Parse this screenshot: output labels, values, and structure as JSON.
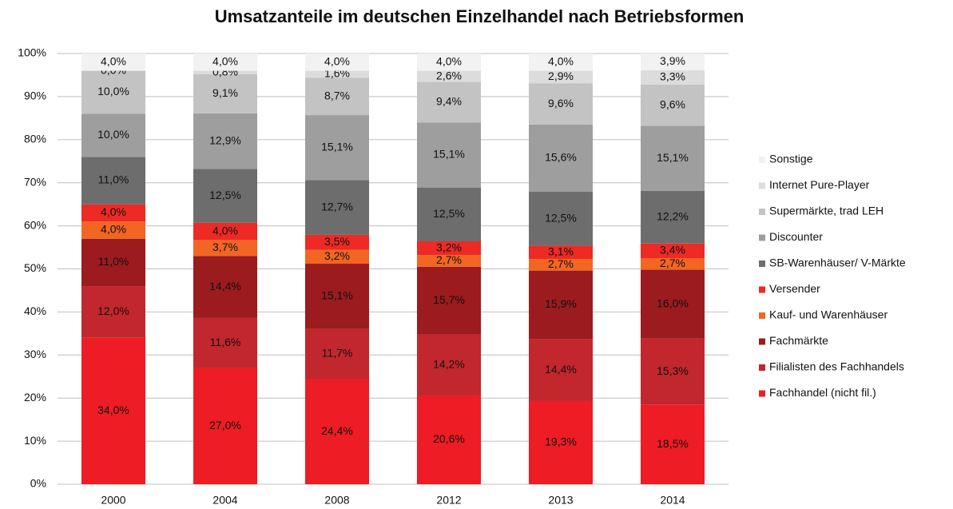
{
  "chart_data": {
    "type": "stacked_bar",
    "title": "Umsatzanteile im deutschen Einzelhandel nach Betriebsformen",
    "categories": [
      "2000",
      "2004",
      "2008",
      "2012",
      "2013",
      "2014"
    ],
    "series": [
      {
        "name": "Fachhandel (nicht fil.)",
        "color": "#ee1c24",
        "values": [
          34.0,
          27.0,
          24.4,
          20.6,
          19.3,
          18.5
        ],
        "value_labels": [
          "34,0%",
          "27,0%",
          "24,4%",
          "20,6%",
          "19,3%",
          "18,5%"
        ]
      },
      {
        "name": "Filialisten des Fachhandels",
        "color": "#c1272d",
        "values": [
          12.0,
          11.6,
          11.7,
          14.2,
          14.4,
          15.3
        ],
        "value_labels": [
          "12,0%",
          "11,6%",
          "11,7%",
          "14,2%",
          "14,4%",
          "15,3%"
        ]
      },
      {
        "name": "Fachmärkte",
        "color": "#9b1b1e",
        "values": [
          11.0,
          14.4,
          15.1,
          15.7,
          15.9,
          16.0
        ],
        "value_labels": [
          "11,0%",
          "14,4%",
          "15,1%",
          "15,7%",
          "15,9%",
          "16,0%"
        ]
      },
      {
        "name": "Kauf- und Warenhäuser",
        "color": "#f26522",
        "values": [
          4.0,
          3.7,
          3.2,
          2.7,
          2.7,
          2.7
        ],
        "value_labels": [
          "4,0%",
          "3,7%",
          "3,2%",
          "2,7%",
          "2,7%",
          "2,7%"
        ]
      },
      {
        "name": "Versender",
        "color": "#ed2a24",
        "values": [
          4.0,
          4.0,
          3.5,
          3.2,
          3.1,
          3.4
        ],
        "value_labels": [
          "4,0%",
          "4,0%",
          "3,5%",
          "3,2%",
          "3,1%",
          "3,4%"
        ]
      },
      {
        "name": "SB-Warenhäuser/ V-Märkte",
        "color": "#6d6d6d",
        "values": [
          11.0,
          12.5,
          12.7,
          12.5,
          12.5,
          12.2
        ],
        "value_labels": [
          "11,0%",
          "12,5%",
          "12,7%",
          "12,5%",
          "12,5%",
          "12,2%"
        ]
      },
      {
        "name": "Discounter",
        "color": "#9e9e9e",
        "values": [
          10.0,
          12.9,
          15.1,
          15.1,
          15.6,
          15.1
        ],
        "value_labels": [
          "10,0%",
          "12,9%",
          "15,1%",
          "15,1%",
          "15,6%",
          "15,1%"
        ]
      },
      {
        "name": "Supermärkte, trad LEH",
        "color": "#c3c3c3",
        "values": [
          10.0,
          9.1,
          8.7,
          9.4,
          9.6,
          9.6
        ],
        "value_labels": [
          "10,0%",
          "9,1%",
          "8,7%",
          "9,4%",
          "9,6%",
          "9,6%"
        ]
      },
      {
        "name": "Internet Pure-Player",
        "color": "#dcdcdc",
        "values": [
          0.0,
          0.8,
          1.6,
          2.6,
          2.9,
          3.3
        ],
        "value_labels": [
          "0,0%",
          "0,8%",
          "1,6%",
          "2,6%",
          "2,9%",
          "3,3%"
        ]
      },
      {
        "name": "Sonstige",
        "color": "#f2f2f2",
        "values": [
          4.0,
          4.0,
          4.0,
          4.0,
          4.0,
          3.9
        ],
        "value_labels": [
          "4,0%",
          "4,0%",
          "4,0%",
          "4,0%",
          "4,0%",
          "3,9%"
        ]
      }
    ],
    "ylim": [
      0,
      100
    ],
    "yticks": [
      {
        "value": 0,
        "label": "0%"
      },
      {
        "value": 10,
        "label": "10%"
      },
      {
        "value": 20,
        "label": "20%"
      },
      {
        "value": 30,
        "label": "30%"
      },
      {
        "value": 40,
        "label": "40%"
      },
      {
        "value": 50,
        "label": "50%"
      },
      {
        "value": 60,
        "label": "60%"
      },
      {
        "value": 70,
        "label": "70%"
      },
      {
        "value": 80,
        "label": "80%"
      },
      {
        "value": 90,
        "label": "90%"
      },
      {
        "value": 100,
        "label": "100%"
      }
    ],
    "grid": true,
    "legend": "right"
  }
}
